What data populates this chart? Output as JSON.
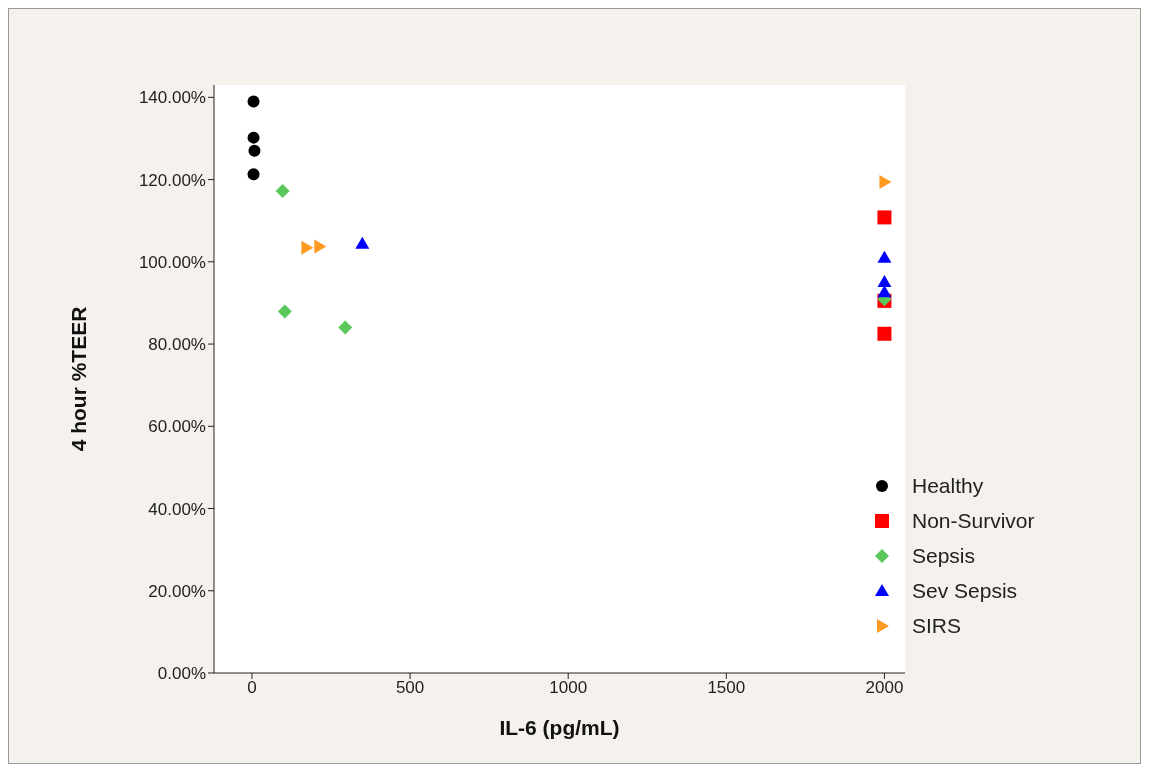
{
  "chart_data": {
    "type": "scatter",
    "xlabel": "IL-6 (pg/mL)",
    "ylabel": "4 hour %TEER",
    "xlim": [
      -120,
      2065
    ],
    "xticks": [
      0,
      500,
      1000,
      1500,
      2000
    ],
    "ylim": [
      0,
      143
    ],
    "yticks": [
      {
        "value": 0,
        "label": "0.00%"
      },
      {
        "value": 20,
        "label": "20.00%"
      },
      {
        "value": 40,
        "label": "40.00%"
      },
      {
        "value": 60,
        "label": "60.00%"
      },
      {
        "value": 80,
        "label": "80.00%"
      },
      {
        "value": 100,
        "label": "100.00%"
      },
      {
        "value": 120,
        "label": "120.00%"
      },
      {
        "value": 140,
        "label": "140.00%"
      }
    ],
    "grid": false,
    "legend": "bottom right",
    "series": [
      {
        "name": "Healthy",
        "color": "#000000",
        "marker": "circle",
        "x": [
          5,
          5,
          8,
          5
        ],
        "values": [
          139.0,
          130.2,
          127.0,
          121.3
        ]
      },
      {
        "name": "Non-Survivor",
        "color": "#ff0000",
        "marker": "square",
        "x": [
          2000,
          2000,
          2000
        ],
        "values": [
          110.8,
          90.5,
          82.5
        ]
      },
      {
        "name": "Sepsis",
        "color": "#5cc85c",
        "marker": "diamond",
        "x": [
          97,
          104,
          295,
          2000
        ],
        "values": [
          117.2,
          87.9,
          84.0,
          90.9
        ]
      },
      {
        "name": "Sev Sepsis",
        "color": "#0000ff",
        "marker": "triangle",
        "x": [
          349,
          2000,
          2000,
          2000
        ],
        "values": [
          104.4,
          101.0,
          95.1,
          92.6
        ]
      },
      {
        "name": "SIRS",
        "color": "#ff9922",
        "marker": "triangle-right",
        "x": [
          172,
          213,
          2000
        ],
        "values": [
          103.4,
          103.7,
          119.4
        ]
      }
    ]
  }
}
